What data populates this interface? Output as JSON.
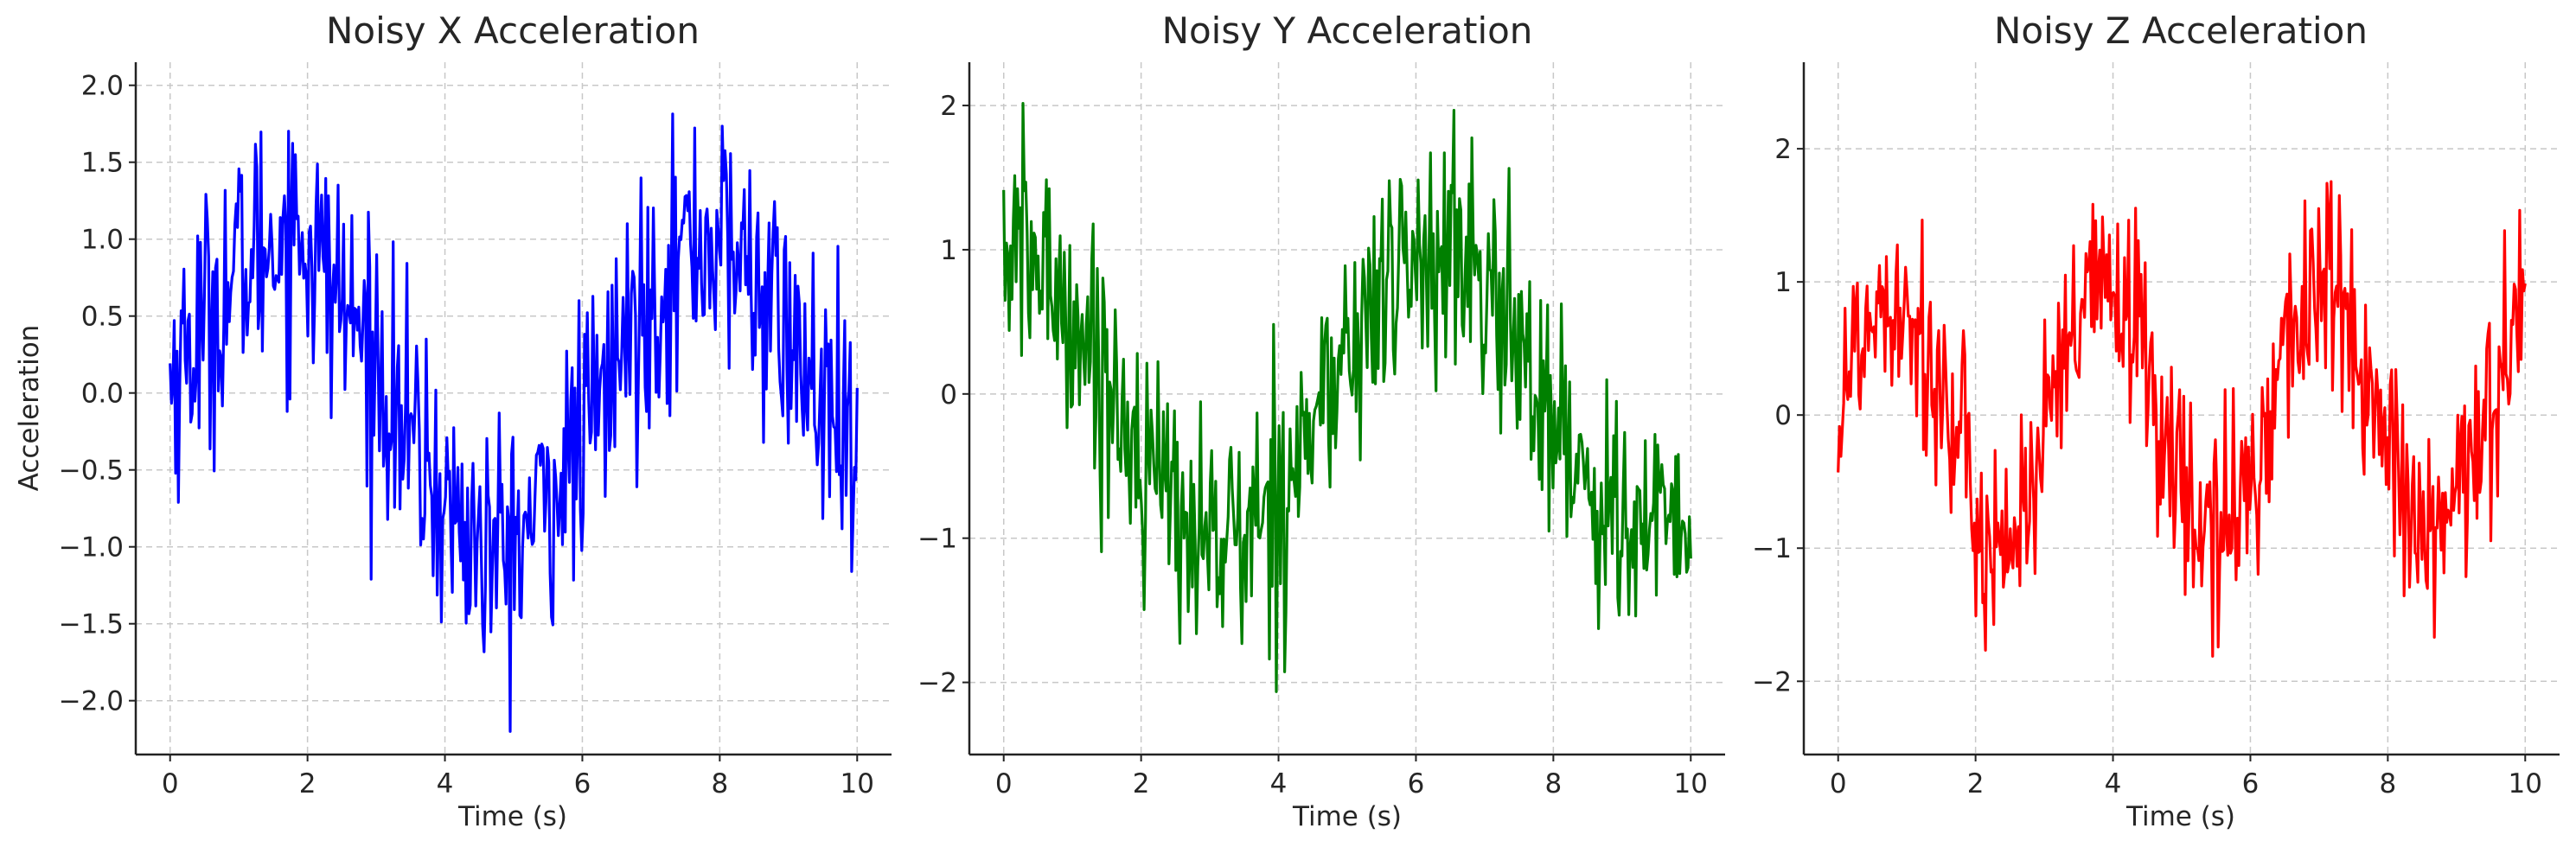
{
  "chart_data": [
    {
      "type": "line",
      "title": "Noisy X Acceleration",
      "xlabel": "Time (s)",
      "ylabel": "Acceleration",
      "xlim": [
        -0.5,
        10.5
      ],
      "ylim": [
        -2.35,
        2.15
      ],
      "xticks": [
        0,
        2,
        4,
        6,
        8,
        10
      ],
      "xtick_labels": [
        "0",
        "2",
        "4",
        "6",
        "8",
        "10"
      ],
      "yticks": [
        -2.0,
        -1.5,
        -1.0,
        -0.5,
        0.0,
        0.5,
        1.0,
        1.5,
        2.0
      ],
      "ytick_labels": [
        "−2.0",
        "−1.5",
        "−1.0",
        "−0.5",
        "0.0",
        "0.5",
        "1.0",
        "1.5",
        "2.0"
      ],
      "grid": true,
      "color": "#0000ff",
      "underlying_signal": "noisy sine, approx sin(x), amplitude ~1, noise sd ~0.4",
      "series": [
        {
          "x": [
            0,
            0.5,
            1,
            1.5,
            1.75,
            2,
            2.5,
            3,
            3.5,
            4,
            4.5,
            4.75,
            5,
            5.5,
            6,
            6.5,
            7,
            7.5,
            8,
            8.5,
            9,
            9.5,
            10
          ],
          "values": [
            0.1,
            0.45,
            0.8,
            1.0,
            1.1,
            1.0,
            0.6,
            0.2,
            -0.3,
            -0.75,
            -1.0,
            -1.05,
            -1.0,
            -0.7,
            -0.3,
            0.2,
            0.65,
            0.95,
            1.0,
            0.75,
            0.35,
            -0.1,
            -0.55
          ]
        }
      ]
    },
    {
      "type": "line",
      "title": "Noisy Y Acceleration",
      "xlabel": "Time (s)",
      "ylabel": "",
      "xlim": [
        -0.5,
        10.5
      ],
      "ylim": [
        -2.5,
        2.3
      ],
      "xticks": [
        0,
        2,
        4,
        6,
        8,
        10
      ],
      "xtick_labels": [
        "0",
        "2",
        "4",
        "6",
        "8",
        "10"
      ],
      "yticks": [
        -2,
        -1,
        0,
        1,
        2
      ],
      "ytick_labels": [
        "−2",
        "−1",
        "0",
        "1",
        "2"
      ],
      "grid": true,
      "color": "#008000",
      "underlying_signal": "noisy cosine, approx cos(x), amplitude ~1, noise sd ~0.4",
      "series": [
        {
          "x": [
            0,
            0.5,
            1,
            1.5,
            2,
            2.5,
            3,
            3.5,
            4,
            4.5,
            5,
            5.5,
            6,
            6.5,
            7,
            7.5,
            8,
            8.5,
            9,
            9.5,
            10
          ],
          "values": [
            1.0,
            0.9,
            0.55,
            0.1,
            -0.4,
            -0.8,
            -1.0,
            -1.0,
            -0.65,
            -0.2,
            0.25,
            0.7,
            0.95,
            0.95,
            0.75,
            0.3,
            -0.15,
            -0.6,
            -0.9,
            -1.0,
            -0.85
          ]
        }
      ]
    },
    {
      "type": "line",
      "title": "Noisy Z Acceleration",
      "xlabel": "Time (s)",
      "ylabel": "",
      "xlim": [
        -0.5,
        10.5
      ],
      "ylim": [
        -2.55,
        2.65
      ],
      "xticks": [
        0,
        2,
        4,
        6,
        8,
        10
      ],
      "xtick_labels": [
        "0",
        "2",
        "4",
        "6",
        "8",
        "10"
      ],
      "yticks": [
        -2,
        -1,
        0,
        1,
        2
      ],
      "ytick_labels": [
        "−2",
        "−1",
        "0",
        "1",
        "2"
      ],
      "grid": true,
      "color": "#ff0000",
      "underlying_signal": "noisy sine, approx sin(2x), amplitude ~1, noise sd ~0.4",
      "series": [
        {
          "x": [
            0,
            0.4,
            0.8,
            1.2,
            1.6,
            2.0,
            2.4,
            2.8,
            3.2,
            3.6,
            4.0,
            4.4,
            4.8,
            5.2,
            5.6,
            6.0,
            6.4,
            6.8,
            7.2,
            7.6,
            8.0,
            8.4,
            8.8,
            9.2,
            9.6,
            10.0
          ],
          "values": [
            0.05,
            0.7,
            1.0,
            0.65,
            -0.05,
            -0.75,
            -1.0,
            -0.6,
            0.15,
            0.8,
            1.0,
            0.55,
            -0.2,
            -0.85,
            -0.95,
            -0.5,
            0.3,
            0.9,
            0.95,
            0.4,
            -0.3,
            -0.9,
            -0.95,
            -0.4,
            0.35,
            0.9
          ]
        }
      ]
    }
  ]
}
